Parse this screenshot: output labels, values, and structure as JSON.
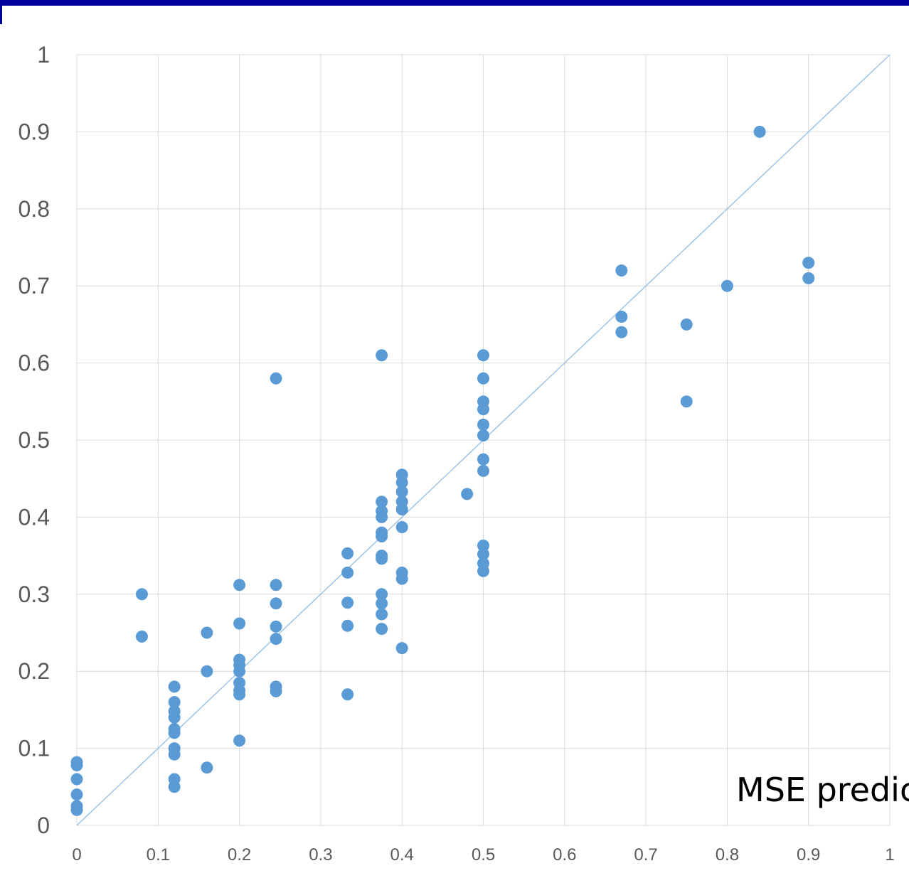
{
  "overlay_text": "MSE predic",
  "colors": {
    "points": "#5b9bd5",
    "diagonal": "#9dc3e6",
    "grid": "#d9d9d9",
    "header_bar": "#00009c"
  },
  "chart_data": {
    "type": "scatter",
    "title": "",
    "xlabel": "",
    "ylabel": "",
    "xlim": [
      0,
      1
    ],
    "ylim": [
      0,
      1
    ],
    "xticks": [
      "0",
      "0.1",
      "0.2",
      "0.3",
      "0.4",
      "0.5",
      "0.6",
      "0.7",
      "0.8",
      "0.9",
      "1"
    ],
    "yticks": [
      "0",
      "0.1",
      "0.2",
      "0.3",
      "0.4",
      "0.5",
      "0.6",
      "0.7",
      "0.8",
      "0.9",
      "1"
    ],
    "grid": true,
    "reference_line": {
      "from": [
        0,
        0
      ],
      "to": [
        1,
        1
      ]
    },
    "points": [
      [
        0,
        0.082
      ],
      [
        0,
        0.078
      ],
      [
        0,
        0.06
      ],
      [
        0,
        0.04
      ],
      [
        0,
        0.025
      ],
      [
        0,
        0.02
      ],
      [
        0.08,
        0.3
      ],
      [
        0.08,
        0.245
      ],
      [
        0.12,
        0.18
      ],
      [
        0.12,
        0.16
      ],
      [
        0.12,
        0.148
      ],
      [
        0.12,
        0.14
      ],
      [
        0.12,
        0.125
      ],
      [
        0.12,
        0.12
      ],
      [
        0.12,
        0.1
      ],
      [
        0.12,
        0.092
      ],
      [
        0.12,
        0.06
      ],
      [
        0.12,
        0.05
      ],
      [
        0.16,
        0.25
      ],
      [
        0.16,
        0.2
      ],
      [
        0.16,
        0.075
      ],
      [
        0.2,
        0.312
      ],
      [
        0.2,
        0.262
      ],
      [
        0.2,
        0.215
      ],
      [
        0.2,
        0.208
      ],
      [
        0.2,
        0.2
      ],
      [
        0.2,
        0.185
      ],
      [
        0.2,
        0.175
      ],
      [
        0.2,
        0.17
      ],
      [
        0.2,
        0.11
      ],
      [
        0.245,
        0.58
      ],
      [
        0.245,
        0.312
      ],
      [
        0.245,
        0.288
      ],
      [
        0.245,
        0.258
      ],
      [
        0.245,
        0.242
      ],
      [
        0.245,
        0.18
      ],
      [
        0.245,
        0.174
      ],
      [
        0.333,
        0.353
      ],
      [
        0.333,
        0.328
      ],
      [
        0.333,
        0.289
      ],
      [
        0.333,
        0.259
      ],
      [
        0.333,
        0.17
      ],
      [
        0.375,
        0.61
      ],
      [
        0.375,
        0.42
      ],
      [
        0.375,
        0.408
      ],
      [
        0.375,
        0.4
      ],
      [
        0.375,
        0.38
      ],
      [
        0.375,
        0.375
      ],
      [
        0.375,
        0.35
      ],
      [
        0.375,
        0.346
      ],
      [
        0.375,
        0.3
      ],
      [
        0.375,
        0.288
      ],
      [
        0.375,
        0.274
      ],
      [
        0.375,
        0.255
      ],
      [
        0.4,
        0.455
      ],
      [
        0.4,
        0.445
      ],
      [
        0.4,
        0.433
      ],
      [
        0.4,
        0.42
      ],
      [
        0.4,
        0.41
      ],
      [
        0.4,
        0.387
      ],
      [
        0.4,
        0.328
      ],
      [
        0.4,
        0.32
      ],
      [
        0.4,
        0.23
      ],
      [
        0.48,
        0.43
      ],
      [
        0.5,
        0.61
      ],
      [
        0.5,
        0.58
      ],
      [
        0.5,
        0.55
      ],
      [
        0.5,
        0.54
      ],
      [
        0.5,
        0.52
      ],
      [
        0.5,
        0.506
      ],
      [
        0.5,
        0.475
      ],
      [
        0.5,
        0.46
      ],
      [
        0.5,
        0.363
      ],
      [
        0.5,
        0.352
      ],
      [
        0.5,
        0.34
      ],
      [
        0.5,
        0.33
      ],
      [
        0.67,
        0.72
      ],
      [
        0.67,
        0.66
      ],
      [
        0.67,
        0.64
      ],
      [
        0.75,
        0.65
      ],
      [
        0.75,
        0.55
      ],
      [
        0.8,
        0.7
      ],
      [
        0.84,
        0.9
      ],
      [
        0.9,
        0.73
      ],
      [
        0.9,
        0.71
      ]
    ]
  }
}
